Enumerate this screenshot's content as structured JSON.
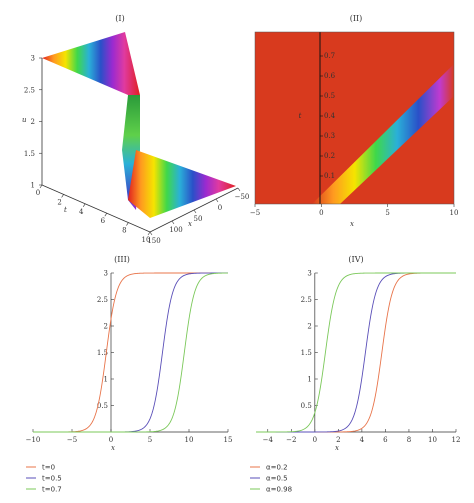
{
  "chart_data": [
    {
      "type": "surface",
      "panel": "(I)",
      "xlabel": "x",
      "ylabel": "t",
      "zlabel": "u",
      "x_ticks": [
        "150",
        "100",
        "50",
        "0",
        "−50"
      ],
      "t_ticks": [
        "0",
        "2",
        "4",
        "6",
        "8",
        "10"
      ],
      "u_ticks": [
        "1",
        "1.5",
        "2",
        "2.5",
        "3"
      ],
      "zlim": [
        1,
        3
      ]
    },
    {
      "type": "heatmap",
      "panel": "(II)",
      "xlabel": "x",
      "ylabel": "t",
      "xlim": [
        -5,
        10
      ],
      "x_ticks": [
        "−5",
        "0",
        "5",
        "10"
      ],
      "y_ticks": [
        "0.1",
        "0.2",
        "0.3",
        "0.4",
        "0.5",
        "0.6",
        "0.7"
      ],
      "colors": {
        "background": "#d83a1e",
        "band": [
          "#ff9a20",
          "#f5e400",
          "#3fd84a",
          "#2ab0d8",
          "#2a50c8",
          "#c03ad0"
        ]
      }
    },
    {
      "type": "line",
      "panel": "(III)",
      "xlabel": "x",
      "xlim": [
        -10,
        15
      ],
      "ylim": [
        0,
        3
      ],
      "x_ticks": [
        "−10",
        "−5",
        "0",
        "5",
        "10",
        "15"
      ],
      "y_ticks": [
        "0.5",
        "1",
        "1.5",
        "2",
        "2.5",
        "3"
      ],
      "series": [
        {
          "name": "t=0",
          "color": "#e8744a",
          "center": -0.6,
          "steep": 1.5
        },
        {
          "name": "t=0.5",
          "color": "#5a4fb8",
          "center": 6.6,
          "steep": 1.5
        },
        {
          "name": "t=0.7",
          "color": "#7bc85a",
          "center": 9.4,
          "steep": 1.5
        }
      ]
    },
    {
      "type": "line",
      "panel": "(IV)",
      "xlabel": "x",
      "xlim": [
        -5,
        12
      ],
      "ylim": [
        0,
        3
      ],
      "x_ticks": [
        "−4",
        "−2",
        "0",
        "2",
        "4",
        "6",
        "8",
        "10",
        "12"
      ],
      "y_ticks": [
        "0.5",
        "1",
        "1.5",
        "2",
        "2.5",
        "3"
      ],
      "series": [
        {
          "name": "α=0.2",
          "color": "#e8744a",
          "center": 5.7,
          "steep": 2.2
        },
        {
          "name": "α=0.5",
          "color": "#5a4fb8",
          "center": 4.3,
          "steep": 2.2
        },
        {
          "name": "α=0.98",
          "color": "#7bc85a",
          "center": 0.9,
          "steep": 2.2
        }
      ]
    }
  ]
}
